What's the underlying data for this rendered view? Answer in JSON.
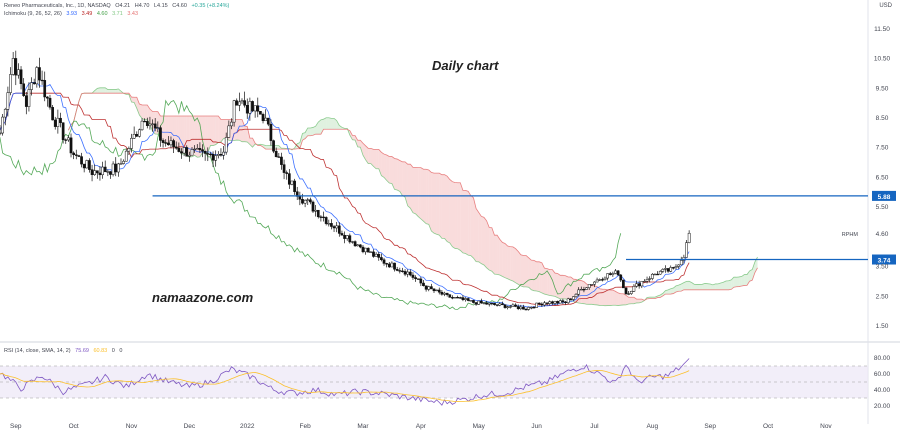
{
  "header": {
    "symbol_line": "Reneo Pharmaceuticals, Inc., 1D, NASDAQ",
    "ohlc": [
      "O4.21",
      "H4.70",
      "L4.15",
      "C4.60",
      "+0.35 (+8.24%)"
    ],
    "ichimoku_label": "Ichimoku (9, 26, 52, 26)",
    "ichimoku_values": [
      "3.93",
      "3.49",
      "4.60",
      "3.71",
      "3.43"
    ],
    "currency": "USD"
  },
  "annotations": {
    "daily_chart": "Daily chart",
    "watermark": "namaazone.com"
  },
  "rsi_header": {
    "label": "RSI (14, close, SMA, 14, 2)",
    "values": [
      "75.69",
      "60.83",
      "0",
      "0"
    ]
  },
  "colors": {
    "tenkan": "#2962ff",
    "kijun": "#b71c1c",
    "chikou": "#43a047",
    "cloud_bull": "#a5d6a7",
    "cloud_bear": "#ef9a9a",
    "level": "#1565c0",
    "rsi": "#7e57c2",
    "rsi_ma": "#fbc02d"
  },
  "chart_data": {
    "type": "candlestick",
    "x_ticks": [
      "Sep",
      "Oct",
      "Nov",
      "Dec",
      "2022",
      "Feb",
      "Mar",
      "Apr",
      "May",
      "Jun",
      "Jul",
      "Aug",
      "Sep",
      "Oct",
      "Nov"
    ],
    "y_ticks": [
      1.5,
      2.5,
      3.5,
      4.6,
      5.5,
      6.5,
      7.5,
      8.5,
      9.5,
      10.5,
      11.5
    ],
    "ylim": [
      1.1,
      12.2
    ],
    "horizontal_levels": [
      {
        "label": "5.88",
        "value": 5.88
      },
      {
        "label": "3.74",
        "value": 3.74
      }
    ],
    "last_price_label": "RPHM",
    "last_price": 4.6,
    "price_path": [
      [
        0,
        8.0
      ],
      [
        5,
        10.5
      ],
      [
        10,
        9.0
      ],
      [
        14,
        10.2
      ],
      [
        20,
        8.6
      ],
      [
        28,
        7.3
      ],
      [
        35,
        6.7
      ],
      [
        45,
        6.8
      ],
      [
        55,
        8.6
      ],
      [
        62,
        7.7
      ],
      [
        70,
        7.4
      ],
      [
        78,
        7.2
      ],
      [
        85,
        7.4
      ],
      [
        90,
        9.2
      ],
      [
        95,
        8.8
      ],
      [
        100,
        8.6
      ],
      [
        104,
        7.6
      ],
      [
        108,
        6.6
      ],
      [
        115,
        5.8
      ],
      [
        125,
        5.0
      ],
      [
        135,
        4.3
      ],
      [
        145,
        3.7
      ],
      [
        155,
        3.3
      ],
      [
        162,
        2.8
      ],
      [
        170,
        2.5
      ],
      [
        180,
        2.3
      ],
      [
        190,
        2.2
      ],
      [
        200,
        2.1
      ],
      [
        207,
        2.3
      ],
      [
        215,
        2.3
      ],
      [
        222,
        2.8
      ],
      [
        230,
        3.2
      ],
      [
        235,
        3.3
      ],
      [
        238,
        2.6
      ],
      [
        244,
        3.0
      ],
      [
        250,
        3.3
      ],
      [
        256,
        3.4
      ],
      [
        260,
        3.9
      ],
      [
        262,
        4.6
      ]
    ],
    "rsi": {
      "ticks": [
        20,
        40,
        60,
        80
      ],
      "band": [
        30,
        70
      ],
      "path": [
        [
          0,
          62
        ],
        [
          8,
          42
        ],
        [
          16,
          58
        ],
        [
          24,
          38
        ],
        [
          32,
          46
        ],
        [
          40,
          56
        ],
        [
          48,
          44
        ],
        [
          56,
          60
        ],
        [
          64,
          50
        ],
        [
          72,
          44
        ],
        [
          80,
          50
        ],
        [
          88,
          66
        ],
        [
          96,
          56
        ],
        [
          104,
          40
        ],
        [
          112,
          36
        ],
        [
          120,
          40
        ],
        [
          128,
          34
        ],
        [
          136,
          38
        ],
        [
          144,
          36
        ],
        [
          152,
          32
        ],
        [
          160,
          28
        ],
        [
          168,
          24
        ],
        [
          176,
          28
        ],
        [
          184,
          34
        ],
        [
          192,
          36
        ],
        [
          200,
          44
        ],
        [
          208,
          50
        ],
        [
          214,
          60
        ],
        [
          218,
          66
        ],
        [
          222,
          70
        ],
        [
          228,
          60
        ],
        [
          234,
          48
        ],
        [
          238,
          72
        ],
        [
          242,
          50
        ],
        [
          248,
          56
        ],
        [
          254,
          58
        ],
        [
          262,
          76
        ]
      ]
    }
  }
}
